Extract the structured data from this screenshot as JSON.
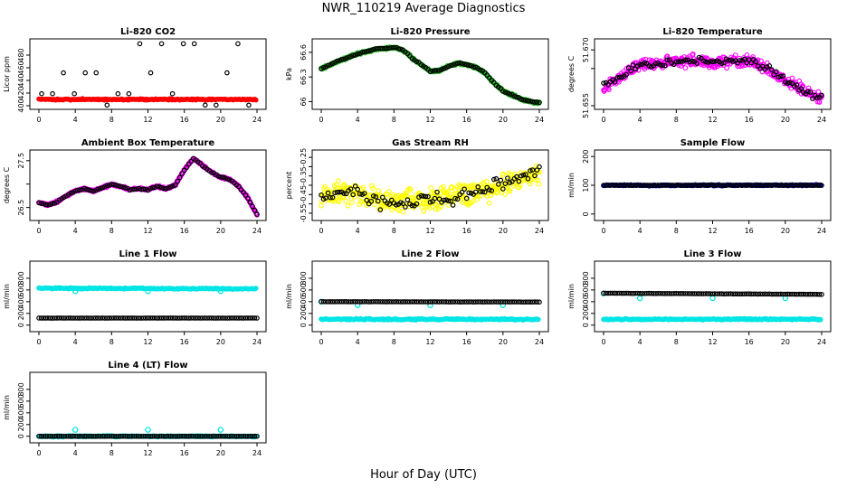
{
  "figure": {
    "title": "NWR_110219  Average Diagnostics",
    "xlabel": "Hour of Day (UTC)",
    "xticks": [
      "0",
      "4",
      "8",
      "12",
      "16",
      "20",
      "24"
    ],
    "xlim": [
      0,
      24
    ]
  },
  "chart_data": [
    {
      "id": "co2",
      "type": "scatter",
      "title": "Li-820 CO2",
      "ylabel": "Licor ppm",
      "ylim": [
        400,
        500
      ],
      "yticks": [
        400,
        420,
        440,
        460,
        480
      ],
      "series": [
        {
          "name": "thick baseline",
          "color": "#ff0000",
          "kind": "band",
          "y_start": 410,
          "y_end": 410
        },
        {
          "name": "average",
          "color": "#000000",
          "kind": "levels",
          "levels": [
            401,
            419,
            452,
            498
          ],
          "step": 1.2
        }
      ]
    },
    {
      "id": "pressure",
      "type": "scatter",
      "title": "Li-820 Pressure",
      "ylabel": "kPa",
      "ylim": [
        65.95,
        66.72
      ],
      "yticks": [
        66.0,
        66.3,
        66.6
      ],
      "series": [
        {
          "name": "raw",
          "color": "#22bb22",
          "kind": "curve",
          "jitter": 0.02,
          "points": [
            [
              0,
              66.4
            ],
            [
              2,
              66.5
            ],
            [
              4,
              66.58
            ],
            [
              6,
              66.64
            ],
            [
              8,
              66.66
            ],
            [
              9,
              66.63
            ],
            [
              10,
              66.53
            ],
            [
              11,
              66.45
            ],
            [
              12,
              66.37
            ],
            [
              13,
              66.38
            ],
            [
              14,
              66.43
            ],
            [
              15,
              66.47
            ],
            [
              16,
              66.45
            ],
            [
              17,
              66.42
            ],
            [
              18,
              66.35
            ],
            [
              19,
              66.23
            ],
            [
              20,
              66.13
            ],
            [
              21,
              66.08
            ],
            [
              22,
              66.03
            ],
            [
              23,
              66.0
            ],
            [
              24,
              65.99
            ]
          ]
        },
        {
          "name": "average",
          "color": "#000000",
          "kind": "curve",
          "jitter": 0.01,
          "points": [
            [
              0,
              66.4
            ],
            [
              2,
              66.5
            ],
            [
              4,
              66.58
            ],
            [
              6,
              66.64
            ],
            [
              8,
              66.66
            ],
            [
              9,
              66.63
            ],
            [
              10,
              66.53
            ],
            [
              11,
              66.45
            ],
            [
              12,
              66.37
            ],
            [
              13,
              66.38
            ],
            [
              14,
              66.43
            ],
            [
              15,
              66.47
            ],
            [
              16,
              66.45
            ],
            [
              17,
              66.42
            ],
            [
              18,
              66.35
            ],
            [
              19,
              66.23
            ],
            [
              20,
              66.13
            ],
            [
              21,
              66.08
            ],
            [
              22,
              66.03
            ],
            [
              23,
              66.0
            ],
            [
              24,
              65.99
            ]
          ]
        }
      ]
    },
    {
      "id": "temp",
      "type": "scatter",
      "title": "Li-820 Temperature",
      "ylabel": "degrees C",
      "ylim": [
        51.655,
        51.672
      ],
      "yticks": [
        51.655,
        51.665,
        51.67
      ],
      "ytick_labels": [
        "51.655",
        "",
        "51.670"
      ],
      "series": [
        {
          "name": "raw",
          "color": "#ff00ff",
          "kind": "curve",
          "jitter": 0.0022,
          "points": [
            [
              0,
              51.66
            ],
            [
              2,
              51.663
            ],
            [
              4,
              51.666
            ],
            [
              6,
              51.6665
            ],
            [
              8,
              51.667
            ],
            [
              10,
              51.667
            ],
            [
              12,
              51.6665
            ],
            [
              14,
              51.667
            ],
            [
              16,
              51.667
            ],
            [
              18,
              51.665
            ],
            [
              20,
              51.662
            ],
            [
              22,
              51.659
            ],
            [
              24,
              51.657
            ]
          ]
        },
        {
          "name": "average",
          "color": "#000000",
          "kind": "curve",
          "jitter": 0.0016,
          "points": [
            [
              0,
              51.66
            ],
            [
              2,
              51.663
            ],
            [
              4,
              51.666
            ],
            [
              6,
              51.6665
            ],
            [
              8,
              51.667
            ],
            [
              10,
              51.667
            ],
            [
              12,
              51.6665
            ],
            [
              14,
              51.667
            ],
            [
              16,
              51.667
            ],
            [
              18,
              51.665
            ],
            [
              20,
              51.662
            ],
            [
              22,
              51.659
            ],
            [
              24,
              51.657
            ]
          ]
        }
      ]
    },
    {
      "id": "ambient",
      "type": "scatter",
      "title": "Ambient Box Temperature",
      "ylabel": "degrees C",
      "ylim": [
        26.3,
        27.65
      ],
      "yticks": [
        26.5,
        27.0,
        27.5
      ],
      "ytick_labels": [
        "26.5",
        "",
        "27.5"
      ],
      "series": [
        {
          "name": "raw",
          "color": "#ff00ff",
          "kind": "curve",
          "jitter": 0.03,
          "points": [
            [
              0,
              26.6
            ],
            [
              1,
              26.55
            ],
            [
              2,
              26.62
            ],
            [
              3,
              26.75
            ],
            [
              4,
              26.85
            ],
            [
              5,
              26.9
            ],
            [
              6,
              26.85
            ],
            [
              7,
              26.92
            ],
            [
              8,
              27.0
            ],
            [
              9,
              26.95
            ],
            [
              10,
              26.88
            ],
            [
              11,
              26.9
            ],
            [
              12,
              26.88
            ],
            [
              13,
              26.95
            ],
            [
              14,
              26.9
            ],
            [
              15,
              26.98
            ],
            [
              16,
              27.3
            ],
            [
              17,
              27.55
            ],
            [
              18,
              27.4
            ],
            [
              19,
              27.25
            ],
            [
              20,
              27.15
            ],
            [
              21,
              27.1
            ],
            [
              22,
              26.95
            ],
            [
              23,
              26.7
            ],
            [
              24,
              26.35
            ]
          ]
        },
        {
          "name": "average",
          "color": "#000000",
          "kind": "curve",
          "jitter": 0.015,
          "points": [
            [
              0,
              26.6
            ],
            [
              1,
              26.55
            ],
            [
              2,
              26.62
            ],
            [
              3,
              26.75
            ],
            [
              4,
              26.85
            ],
            [
              5,
              26.9
            ],
            [
              6,
              26.85
            ],
            [
              7,
              26.92
            ],
            [
              8,
              27.0
            ],
            [
              9,
              26.95
            ],
            [
              10,
              26.88
            ],
            [
              11,
              26.9
            ],
            [
              12,
              26.88
            ],
            [
              13,
              26.95
            ],
            [
              14,
              26.9
            ],
            [
              15,
              26.98
            ],
            [
              16,
              27.3
            ],
            [
              17,
              27.55
            ],
            [
              18,
              27.4
            ],
            [
              19,
              27.25
            ],
            [
              20,
              27.15
            ],
            [
              21,
              27.1
            ],
            [
              22,
              26.95
            ],
            [
              23,
              26.7
            ],
            [
              24,
              26.35
            ]
          ]
        }
      ]
    },
    {
      "id": "rh",
      "type": "scatter",
      "title": "Gas Stream RH",
      "ylabel": "percent",
      "ylim": [
        -0.57,
        -0.23
      ],
      "yticks": [
        -0.55,
        -0.5,
        -0.45,
        -0.4,
        -0.35,
        -0.3,
        -0.25
      ],
      "ytick_labels": [
        "-0.55",
        "",
        "-0.45",
        "",
        "-0.35",
        "",
        "-0.25"
      ],
      "series": [
        {
          "name": "raw",
          "color": "#ffff00",
          "kind": "curve",
          "jitter": 0.09,
          "points": [
            [
              0,
              -0.45
            ],
            [
              2,
              -0.44
            ],
            [
              4,
              -0.45
            ],
            [
              6,
              -0.48
            ],
            [
              8,
              -0.49
            ],
            [
              10,
              -0.48
            ],
            [
              12,
              -0.48
            ],
            [
              14,
              -0.46
            ],
            [
              16,
              -0.45
            ],
            [
              18,
              -0.43
            ],
            [
              20,
              -0.4
            ],
            [
              22,
              -0.37
            ],
            [
              24,
              -0.33
            ]
          ]
        },
        {
          "name": "average",
          "color": "#000000",
          "kind": "curve",
          "jitter": 0.06,
          "points": [
            [
              0,
              -0.45
            ],
            [
              2,
              -0.44
            ],
            [
              4,
              -0.45
            ],
            [
              6,
              -0.48
            ],
            [
              8,
              -0.49
            ],
            [
              10,
              -0.48
            ],
            [
              12,
              -0.48
            ],
            [
              14,
              -0.46
            ],
            [
              16,
              -0.45
            ],
            [
              18,
              -0.43
            ],
            [
              20,
              -0.4
            ],
            [
              22,
              -0.37
            ],
            [
              24,
              -0.33
            ]
          ]
        }
      ]
    },
    {
      "id": "sample",
      "type": "scatter",
      "title": "Sample Flow",
      "ylabel": "ml/min",
      "ylim": [
        -10,
        210
      ],
      "yticks": [
        0,
        100,
        200
      ],
      "series": [
        {
          "name": "raw",
          "color": "#0000cc",
          "kind": "band",
          "y_start": 100,
          "y_end": 100
        },
        {
          "name": "average",
          "color": "#000000",
          "kind": "curve",
          "jitter": 1,
          "points": [
            [
              0,
              100
            ],
            [
              24,
              100
            ]
          ]
        }
      ]
    },
    {
      "id": "line1",
      "type": "scatter",
      "title": "Line 1 Flow",
      "ylabel": "ml/min",
      "ylim": [
        -50,
        1030
      ],
      "yticks": [
        0,
        200,
        400,
        600,
        800
      ],
      "series": [
        {
          "name": "raw",
          "color": "#00e5e5",
          "kind": "band",
          "y_start": 630,
          "y_end": 620
        },
        {
          "name": "raw outliers",
          "color": "#00e5e5",
          "kind": "points",
          "x": [
            4,
            12,
            20
          ],
          "y": [
            580,
            580,
            580
          ]
        },
        {
          "name": "average",
          "color": "#000000",
          "kind": "curve",
          "jitter": 2,
          "points": [
            [
              0,
              120
            ],
            [
              24,
              120
            ]
          ]
        }
      ]
    },
    {
      "id": "line2",
      "type": "scatter",
      "title": "Line 2 Flow",
      "ylabel": "ml/min",
      "ylim": [
        -50,
        1030
      ],
      "yticks": [
        0,
        200,
        400,
        600,
        800
      ],
      "series": [
        {
          "name": "raw",
          "color": "#00e5e5",
          "kind": "band",
          "y_start": 100,
          "y_end": 100
        },
        {
          "name": "raw start",
          "color": "#00e5e5",
          "kind": "points",
          "x": [
            0
          ],
          "y": [
            400
          ]
        },
        {
          "name": "raw outliers",
          "color": "#00e5e5",
          "kind": "points",
          "x": [
            4,
            12,
            20
          ],
          "y": [
            340,
            340,
            340
          ]
        },
        {
          "name": "average",
          "color": "#000000",
          "kind": "curve",
          "jitter": 3,
          "points": [
            [
              0.5,
              400
            ],
            [
              24,
              395
            ]
          ]
        }
      ]
    },
    {
      "id": "line3",
      "type": "scatter",
      "title": "Line 3 Flow",
      "ylabel": "ml/min",
      "ylim": [
        -50,
        1030
      ],
      "yticks": [
        0,
        200,
        400,
        600,
        800
      ],
      "series": [
        {
          "name": "raw",
          "color": "#00e5e5",
          "kind": "band",
          "y_start": 100,
          "y_end": 100
        },
        {
          "name": "raw start",
          "color": "#00e5e5",
          "kind": "points",
          "x": [
            0
          ],
          "y": [
            540
          ]
        },
        {
          "name": "raw outliers",
          "color": "#00e5e5",
          "kind": "points",
          "x": [
            4,
            12,
            20
          ],
          "y": [
            460,
            460,
            460
          ]
        },
        {
          "name": "average",
          "color": "#000000",
          "kind": "curve",
          "jitter": 3,
          "points": [
            [
              0.5,
              545
            ],
            [
              24,
              525
            ]
          ]
        }
      ]
    },
    {
      "id": "line4",
      "type": "scatter",
      "title": "Line 4 (LT) Flow",
      "ylabel": "ml/min",
      "ylim": [
        -50,
        1030
      ],
      "yticks": [
        0,
        200,
        400,
        600,
        800
      ],
      "series": [
        {
          "name": "raw",
          "color": "#00e5e5",
          "kind": "band",
          "y_start": 0,
          "y_end": 0
        },
        {
          "name": "raw outliers",
          "color": "#00e5e5",
          "kind": "points",
          "x": [
            4,
            12,
            20
          ],
          "y": [
            110,
            110,
            110
          ]
        },
        {
          "name": "average",
          "color": "#000000",
          "kind": "curve",
          "jitter": 1,
          "points": [
            [
              0,
              0
            ],
            [
              24,
              0
            ]
          ]
        }
      ]
    }
  ]
}
